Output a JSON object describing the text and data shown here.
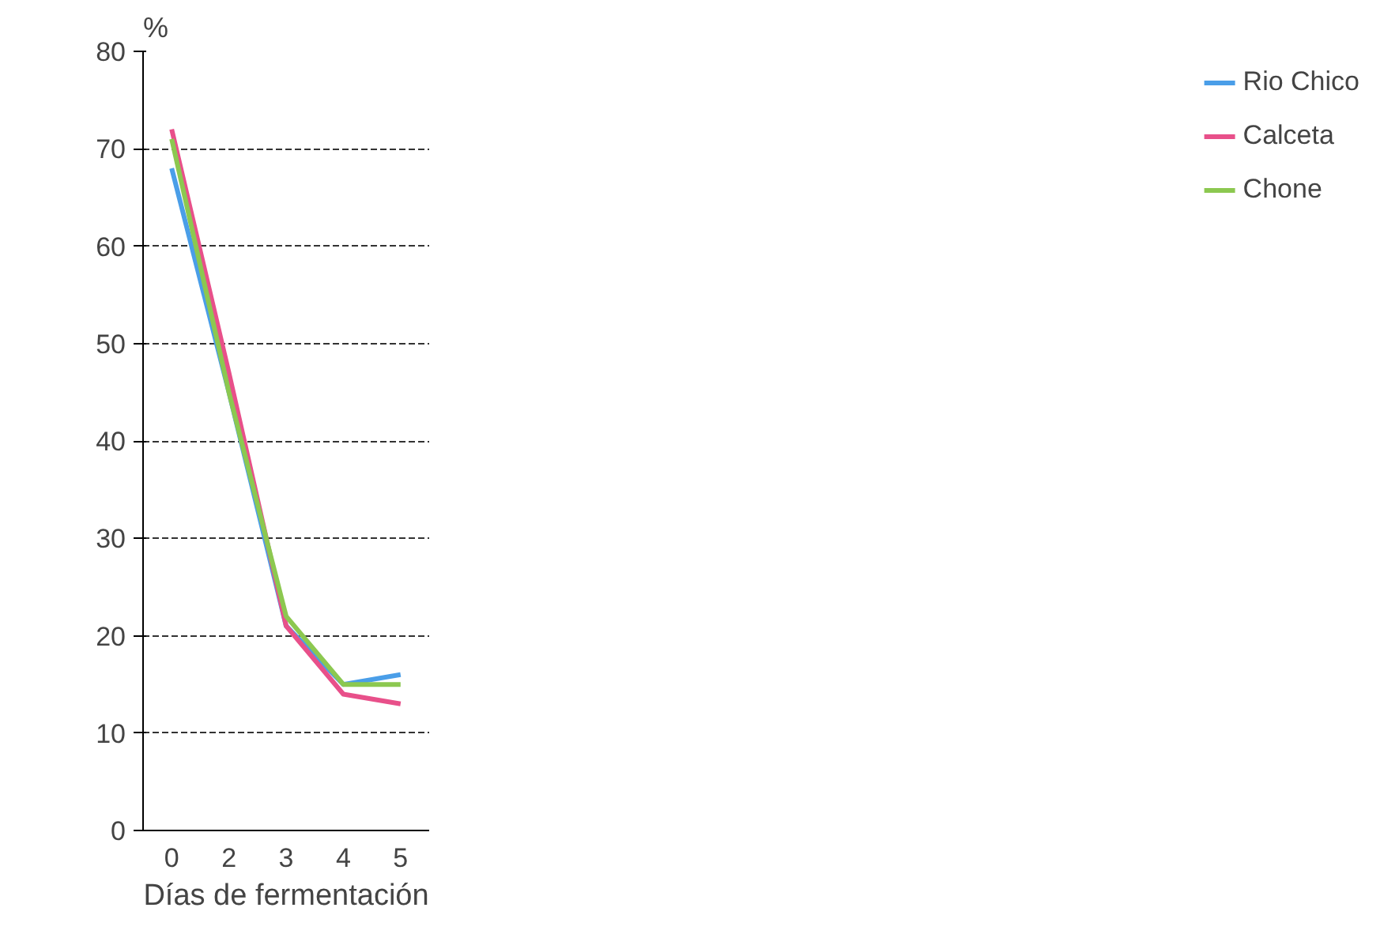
{
  "chart_data": {
    "type": "line",
    "xlabel": "Días de fermentación",
    "ylabel": "%",
    "categories": [
      "0",
      "2",
      "3",
      "4",
      "5"
    ],
    "series": [
      {
        "name": "Rio Chico",
        "color": "#4a9ee8",
        "values": [
          68,
          45,
          21,
          15,
          16
        ]
      },
      {
        "name": "Calceta",
        "color": "#e8508a",
        "values": [
          72,
          47,
          21,
          14,
          13
        ]
      },
      {
        "name": "Chone",
        "color": "#8cc850",
        "values": [
          71,
          45,
          22,
          15,
          15
        ]
      }
    ],
    "ylim": [
      0,
      80
    ],
    "yticks": [
      0,
      10,
      20,
      30,
      40,
      50,
      60,
      70,
      80
    ],
    "grid": "y",
    "legend": "right",
    "marker": "none",
    "line_style": "solid"
  }
}
